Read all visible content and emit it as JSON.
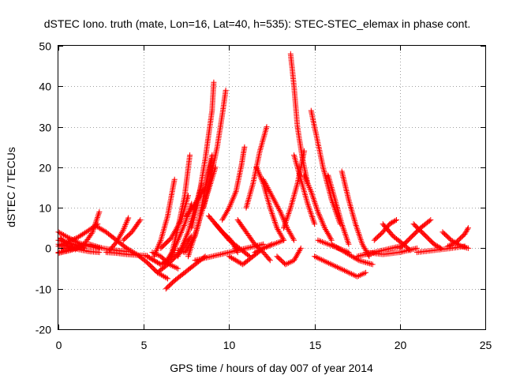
{
  "chart_data": {
    "type": "scatter",
    "title": "dSTEC Iono. truth (mate, Lon=16, Lat=40, h=535): STEC-STEC_elemax in phase cont.",
    "xlabel": "GPS time / hours of day 007 of year 2014",
    "ylabel": "dSTEC  / TECUs",
    "xlim": [
      0,
      25
    ],
    "ylim": [
      -20,
      50
    ],
    "xticks": [
      "0",
      "5",
      "10",
      "15",
      "20",
      "25"
    ],
    "yticks": [
      "-20",
      "-10",
      "0",
      "10",
      "20",
      "30",
      "40",
      "50"
    ],
    "grid": true,
    "marker": "plus",
    "color": "#ff0000",
    "series": [
      {
        "x": [
          0.0,
          0.6,
          1.2,
          1.8,
          2.4
        ],
        "y": [
          4.0,
          2.6,
          1.3,
          0.5,
          0.0
        ]
      },
      {
        "x": [
          0.0,
          0.6,
          1.2,
          1.8,
          2.4
        ],
        "y": [
          1.0,
          0.5,
          -0.3,
          -0.8,
          -1.0
        ]
      },
      {
        "x": [
          0.0,
          0.4,
          0.8,
          1.2,
          1.6
        ],
        "y": [
          -1.0,
          -0.7,
          -0.2,
          0.3,
          0.8
        ]
      },
      {
        "x": [
          0.0,
          0.5,
          1.0,
          1.5
        ],
        "y": [
          2.0,
          1.5,
          0.8,
          0.0
        ]
      },
      {
        "x": [
          0.1,
          0.4,
          0.8
        ],
        "y": [
          2.5,
          1.5,
          0.2
        ]
      },
      {
        "x": [
          0.0,
          0.5,
          1.1,
          1.7,
          2.3
        ],
        "y": [
          0.5,
          1.5,
          2.6,
          4.2,
          6.0
        ]
      },
      {
        "x": [
          0.0,
          0.4,
          0.8
        ],
        "y": [
          -1.2,
          -0.8,
          -0.4
        ]
      },
      {
        "x": [
          0.2,
          1.0,
          1.6,
          2.0,
          2.4
        ],
        "y": [
          0.0,
          -0.3,
          1.5,
          4.0,
          9.0
        ]
      },
      {
        "x": [
          2.2,
          2.8,
          3.4,
          4.0
        ],
        "y": [
          5.5,
          4.0,
          2.0,
          0.0
        ]
      },
      {
        "x": [
          1.8,
          2.6,
          3.4,
          4.0
        ],
        "y": [
          1.0,
          0.0,
          -0.5,
          -0.8
        ]
      },
      {
        "x": [
          3.0,
          3.4,
          3.8,
          4.1
        ],
        "y": [
          -0.5,
          1.5,
          4.5,
          7.5
        ]
      },
      {
        "x": [
          2.8,
          3.4,
          4.0,
          4.6,
          5.2
        ],
        "y": [
          -1.0,
          -1.2,
          -1.5,
          -1.7,
          -1.8
        ]
      },
      {
        "x": [
          3.8,
          4.3,
          4.8
        ],
        "y": [
          2.0,
          4.0,
          7.0
        ]
      },
      {
        "x": [
          4.0,
          4.6,
          5.2,
          5.8,
          6.4
        ],
        "y": [
          0.0,
          -1.5,
          -3.5,
          -6.0,
          -7.5
        ]
      },
      {
        "x": [
          5.2,
          5.6,
          6.0,
          6.4,
          6.8
        ],
        "y": [
          -2.0,
          -3.0,
          -4.0,
          -3.0,
          -1.0
        ]
      },
      {
        "x": [
          6.3,
          6.8,
          7.4,
          8.0,
          8.6
        ],
        "y": [
          -10.0,
          -8.0,
          -6.0,
          -4.0,
          -2.0
        ]
      },
      {
        "x": [
          5.8,
          6.4,
          7.0,
          7.4,
          7.8
        ],
        "y": [
          -6.0,
          -4.0,
          -1.5,
          0.5,
          3.0
        ]
      },
      {
        "x": [
          5.6,
          6.0,
          6.4,
          6.8
        ],
        "y": [
          -2.0,
          2.0,
          8.0,
          17.0
        ]
      },
      {
        "x": [
          6.0,
          6.6,
          7.2,
          7.6
        ],
        "y": [
          0.0,
          2.5,
          7.0,
          13.0
        ]
      },
      {
        "x": [
          6.6,
          7.0,
          7.4,
          7.7
        ],
        "y": [
          -2.0,
          5.0,
          13.0,
          23.0
        ]
      },
      {
        "x": [
          6.2,
          6.8,
          7.4,
          7.8
        ],
        "y": [
          -4.0,
          0.0,
          6.0,
          11.0
        ]
      },
      {
        "x": [
          7.0,
          7.6,
          8.0,
          8.4
        ],
        "y": [
          -2.0,
          4.0,
          10.0,
          16.0
        ]
      },
      {
        "x": [
          7.6,
          8.2,
          8.6,
          9.0
        ],
        "y": [
          -2.0,
          6.0,
          15.0,
          23.0
        ]
      },
      {
        "x": [
          7.8,
          8.2,
          8.6,
          9.0,
          9.1
        ],
        "y": [
          5.0,
          12.0,
          22.0,
          34.0,
          41.0
        ]
      },
      {
        "x": [
          8.5,
          8.9,
          9.3,
          9.6,
          9.8
        ],
        "y": [
          10.0,
          17.0,
          25.0,
          33.0,
          39.0
        ]
      },
      {
        "x": [
          7.0,
          7.4,
          8.0,
          8.4,
          9.2
        ],
        "y": [
          -0.5,
          -1.0,
          3.0,
          9.0,
          20.0
        ]
      },
      {
        "x": [
          7.5,
          8.0,
          8.6,
          9.0
        ],
        "y": [
          8.0,
          11.0,
          15.0,
          22.0
        ]
      },
      {
        "x": [
          5.5,
          6.0,
          6.5,
          7.0
        ],
        "y": [
          -1.0,
          -2.0,
          -4.0,
          -5.0
        ]
      },
      {
        "x": [
          8.8,
          9.4,
          10.0,
          10.6,
          11.2
        ],
        "y": [
          8.0,
          5.0,
          2.0,
          0.0,
          -2.0
        ]
      },
      {
        "x": [
          8.0,
          9.0,
          10.0,
          11.0,
          12.0
        ],
        "y": [
          -3.0,
          -2.0,
          -1.0,
          0.0,
          1.0
        ]
      },
      {
        "x": [
          9.2,
          9.6,
          10.1,
          10.5
        ],
        "y": [
          6.0,
          4.0,
          2.0,
          -1.0
        ]
      },
      {
        "x": [
          9.6,
          10.0,
          10.4,
          10.7,
          10.9
        ],
        "y": [
          7.0,
          10.0,
          14.0,
          20.0,
          25.0
        ]
      },
      {
        "x": [
          10.5,
          11.0,
          11.5,
          12.0,
          12.4
        ],
        "y": [
          7.0,
          4.0,
          1.0,
          -1.0,
          -3.0
        ]
      },
      {
        "x": [
          10.0,
          10.8,
          11.4,
          12.0,
          12.5
        ],
        "y": [
          -2.0,
          -4.0,
          -2.0,
          0.0,
          1.0
        ]
      },
      {
        "x": [
          11.6,
          12.0,
          12.4,
          12.8,
          13.2
        ],
        "y": [
          20.0,
          16.0,
          10.0,
          5.0,
          2.0
        ]
      },
      {
        "x": [
          11.0,
          11.4,
          11.8,
          12.2
        ],
        "y": [
          10.0,
          16.0,
          24.0,
          30.0
        ]
      },
      {
        "x": [
          12.0,
          12.5,
          13.0,
          13.4,
          13.8
        ],
        "y": [
          17.0,
          13.0,
          9.0,
          5.0,
          2.0
        ]
      },
      {
        "x": [
          11.5,
          12.0,
          12.6,
          13.2
        ],
        "y": [
          -1.0,
          0.0,
          1.0,
          2.0
        ]
      },
      {
        "x": [
          12.8,
          13.3,
          13.8,
          14.2
        ],
        "y": [
          -2.0,
          -4.0,
          -3.0,
          0.0
        ]
      },
      {
        "x": [
          13.2,
          13.6,
          14.0,
          14.4
        ],
        "y": [
          5.0,
          10.0,
          16.0,
          24.0
        ]
      },
      {
        "x": [
          13.6,
          13.8,
          14.0,
          14.3,
          14.6
        ],
        "y": [
          48.0,
          40.0,
          30.0,
          22.0,
          16.0
        ]
      },
      {
        "x": [
          13.8,
          14.2,
          14.6,
          15.0
        ],
        "y": [
          23.0,
          17.0,
          11.0,
          6.0
        ]
      },
      {
        "x": [
          14.4,
          14.8,
          15.2,
          15.6,
          16.0
        ],
        "y": [
          18.0,
          14.0,
          9.0,
          5.0,
          2.0
        ]
      },
      {
        "x": [
          14.8,
          15.1,
          15.5,
          16.0,
          16.5
        ],
        "y": [
          34.0,
          28.0,
          20.0,
          12.0,
          6.0
        ]
      },
      {
        "x": [
          15.2,
          15.8,
          16.4,
          17.0
        ],
        "y": [
          2.0,
          1.0,
          0.0,
          -1.0
        ]
      },
      {
        "x": [
          15.8,
          16.2,
          16.6,
          17.0
        ],
        "y": [
          18.0,
          12.0,
          6.0,
          1.0
        ]
      },
      {
        "x": [
          16.6,
          17.0,
          17.4,
          17.8,
          18.2
        ],
        "y": [
          19.0,
          12.0,
          6.0,
          1.0,
          -2.0
        ]
      },
      {
        "x": [
          15.0,
          16.0,
          17.0,
          17.5,
          18.0
        ],
        "y": [
          -2.0,
          -4.0,
          -6.0,
          -7.0,
          -6.0
        ]
      },
      {
        "x": [
          16.0,
          16.8,
          17.6,
          18.4
        ],
        "y": [
          1.0,
          -1.0,
          -3.0,
          -4.0
        ]
      },
      {
        "x": [
          17.5,
          18.5,
          19.5,
          20.0
        ],
        "y": [
          -2.0,
          -1.0,
          0.0,
          0.5
        ]
      },
      {
        "x": [
          18.5,
          19.0,
          19.4,
          19.8
        ],
        "y": [
          2.0,
          4.0,
          6.0,
          7.0
        ]
      },
      {
        "x": [
          19.0,
          19.6,
          20.2,
          20.6
        ],
        "y": [
          6.0,
          3.0,
          1.0,
          -0.5
        ]
      },
      {
        "x": [
          20.0,
          20.6,
          21.2,
          21.8
        ],
        "y": [
          0.0,
          2.5,
          5.0,
          7.0
        ]
      },
      {
        "x": [
          20.8,
          21.4,
          22.0,
          22.4
        ],
        "y": [
          6.0,
          3.5,
          1.0,
          0.0
        ]
      },
      {
        "x": [
          21.0,
          22.0,
          23.0,
          23.8
        ],
        "y": [
          -1.0,
          -0.5,
          0.0,
          0.5
        ]
      },
      {
        "x": [
          22.5,
          23.0,
          23.6,
          24.0
        ],
        "y": [
          4.0,
          2.0,
          0.5,
          0.0
        ]
      },
      {
        "x": [
          22.8,
          23.3,
          23.8,
          24.0
        ],
        "y": [
          0.5,
          1.5,
          3.5,
          5.0
        ]
      },
      {
        "x": [
          18.0,
          19.0,
          20.0,
          21.0
        ],
        "y": [
          -1.0,
          -1.5,
          -1.0,
          0.0
        ]
      }
    ]
  }
}
